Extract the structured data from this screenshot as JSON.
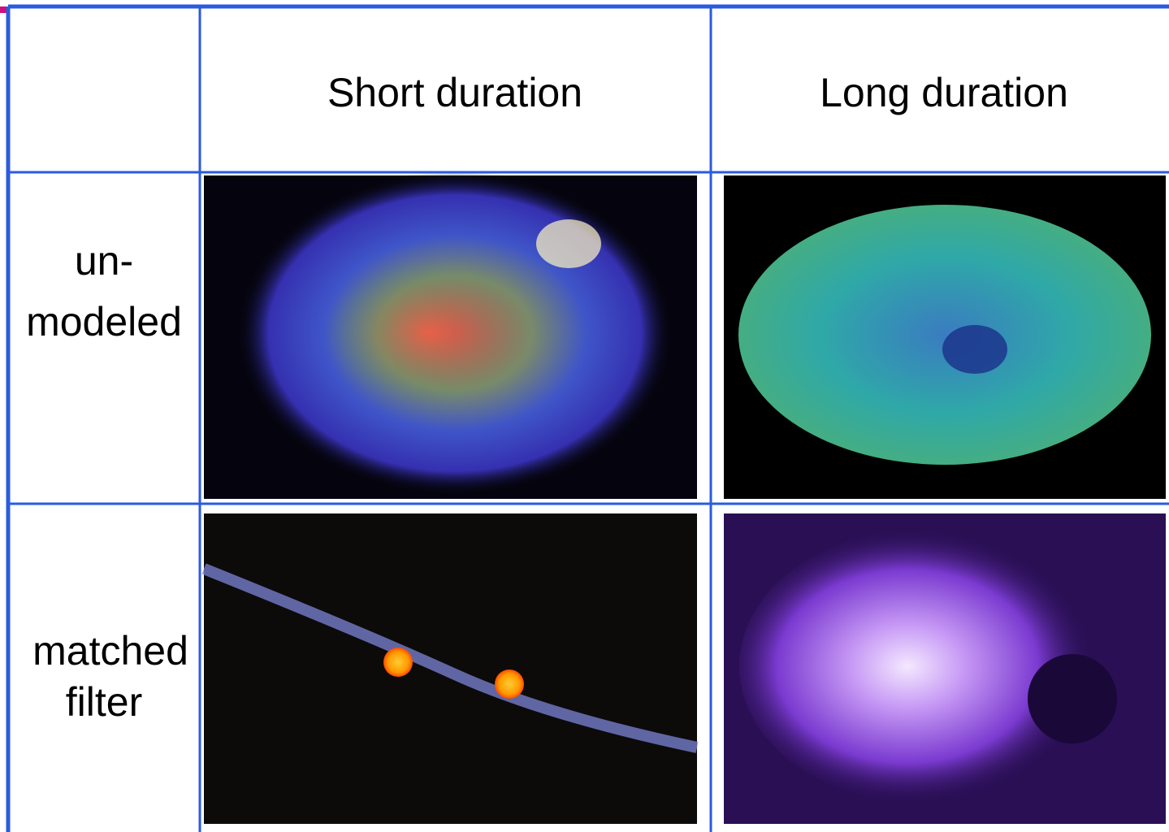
{
  "table": {
    "header": [
      "Short duration",
      "Long duration"
    ],
    "rows": [
      {
        "label": [
          "un-",
          "modeled"
        ]
      },
      {
        "label": [
          "matched",
          "filter"
        ]
      }
    ]
  }
}
